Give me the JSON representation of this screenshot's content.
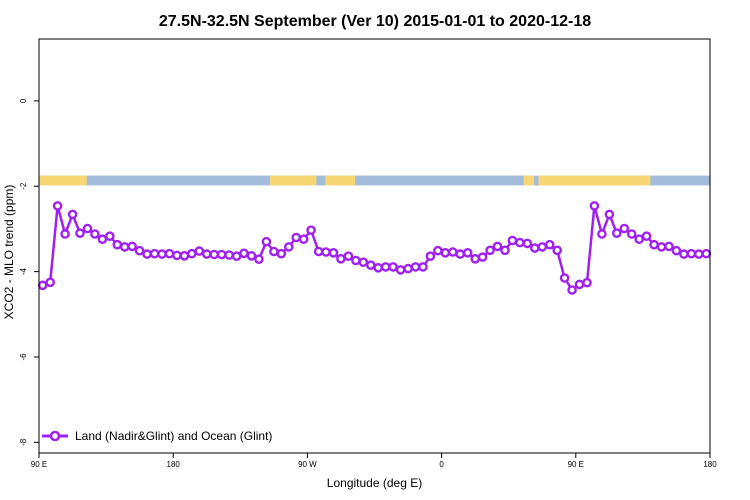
{
  "chart_data": {
    "type": "line",
    "title": "27.5N-32.5N September (Ver 10)   2015-01-01 to 2020-12-18",
    "xlabel": "Longitude (deg E)",
    "ylabel": "XCO2 - MLO trend (ppm)",
    "xlim": [
      90,
      540
    ],
    "ylim": [
      -8.25,
      1.45
    ],
    "x_ticks": [
      {
        "value": 90,
        "label": "90 E"
      },
      {
        "value": 180,
        "label": "180"
      },
      {
        "value": 270,
        "label": "90 W"
      },
      {
        "value": 360,
        "label": "0"
      },
      {
        "value": 450,
        "label": "90 E"
      },
      {
        "value": 540,
        "label": "180"
      }
    ],
    "y_ticks": [
      {
        "value": 0,
        "label": "0"
      },
      {
        "value": -2,
        "label": "-2"
      },
      {
        "value": -4,
        "label": "-4"
      },
      {
        "value": -6,
        "label": "-6"
      },
      {
        "value": -8,
        "label": "-8"
      }
    ],
    "grid": false,
    "legend_position": "bottom-left",
    "surface_band": {
      "y_top": -1.75,
      "y_bottom": -1.98,
      "ocean_color": "#a3bcdc",
      "land_color": "#f7d774",
      "land_segments": [
        [
          90,
          122
        ],
        [
          245,
          276
        ],
        [
          282,
          302
        ],
        [
          415,
          422
        ],
        [
          425,
          500
        ]
      ]
    },
    "series": [
      {
        "name": "Land (Nadir&Glint) and Ocean (Glint)",
        "color": "#a020f0",
        "x": [
          92.5,
          97.5,
          102.5,
          107.5,
          112.5,
          117.5,
          122.5,
          127.5,
          132.5,
          137.5,
          142.5,
          147.5,
          152.5,
          157.5,
          162.5,
          167.5,
          172.5,
          177.5,
          182.5,
          187.5,
          192.5,
          197.5,
          202.5,
          207.5,
          212.5,
          217.5,
          222.5,
          227.5,
          232.5,
          237.5,
          242.5,
          247.5,
          252.5,
          257.5,
          262.5,
          267.5,
          272.5,
          277.5,
          282.5,
          287.5,
          292.5,
          297.5,
          302.5,
          307.5,
          312.5,
          317.5,
          322.5,
          327.5,
          332.5,
          337.5,
          342.5,
          347.5,
          352.5,
          357.5,
          362.5,
          367.5,
          372.5,
          377.5,
          382.5,
          387.5,
          392.5,
          397.5,
          402.5,
          407.5,
          412.5,
          417.5,
          422.5,
          427.5,
          432.5,
          437.5,
          442.5,
          447.5,
          452.5,
          457.5,
          462.5,
          467.5,
          472.5,
          477.5,
          482.5,
          487.5,
          492.5,
          497.5,
          502.5,
          507.5,
          512.5,
          517.5,
          522.5,
          527.5,
          532.5,
          537.5
        ],
        "y": [
          -4.32,
          -4.25,
          -2.46,
          -3.12,
          -2.66,
          -3.1,
          -2.99,
          -3.12,
          -3.24,
          -3.17,
          -3.37,
          -3.42,
          -3.41,
          -3.51,
          -3.59,
          -3.58,
          -3.59,
          -3.58,
          -3.62,
          -3.63,
          -3.58,
          -3.52,
          -3.59,
          -3.6,
          -3.6,
          -3.61,
          -3.64,
          -3.57,
          -3.63,
          -3.71,
          -3.3,
          -3.53,
          -3.58,
          -3.42,
          -3.2,
          -3.24,
          -3.03,
          -3.53,
          -3.54,
          -3.56,
          -3.7,
          -3.64,
          -3.74,
          -3.78,
          -3.85,
          -3.91,
          -3.89,
          -3.89,
          -3.96,
          -3.93,
          -3.89,
          -3.89,
          -3.64,
          -3.51,
          -3.56,
          -3.54,
          -3.59,
          -3.56,
          -3.7,
          -3.66,
          -3.5,
          -3.41,
          -3.5,
          -3.27,
          -3.32,
          -3.34,
          -3.45,
          -3.42,
          -3.37,
          -3.5,
          -4.15,
          -4.43,
          -4.3,
          -4.26,
          -2.46,
          -3.12,
          -2.66,
          -3.1,
          -2.99,
          -3.12,
          -3.24,
          -3.17,
          -3.37,
          -3.42,
          -3.41,
          -3.51,
          -3.59,
          -3.58,
          -3.59,
          -3.58
        ]
      }
    ]
  }
}
